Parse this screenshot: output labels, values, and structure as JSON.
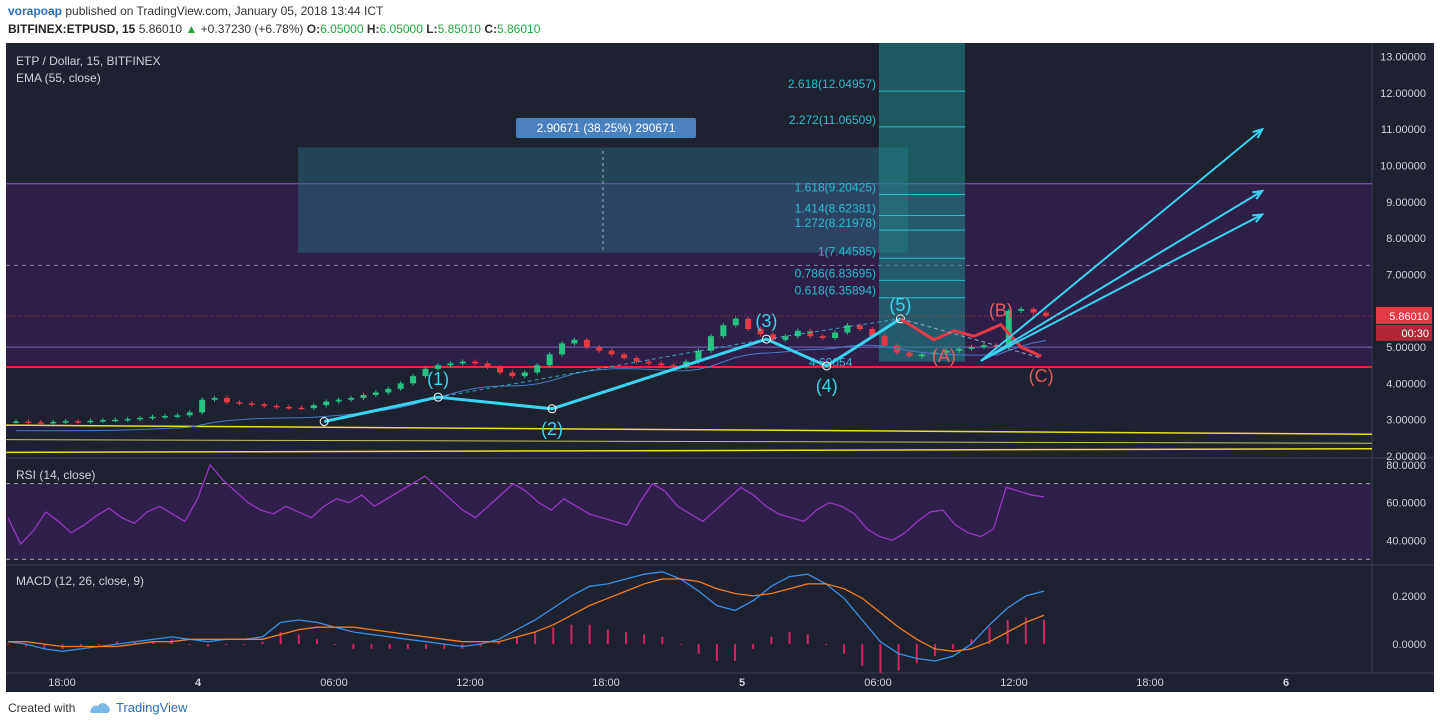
{
  "header": {
    "author": "vorapoap",
    "published": "published on TradingView.com, January 05, 2018 13:44 ICT",
    "symbol": "BITFINEX:ETPUSD, 15",
    "last": "5.86010",
    "change_arrow": "▲",
    "change": "+0.37230 (+6.78%)",
    "o_label": "O:",
    "o": "6.05000",
    "h_label": "H:",
    "h": "6.05000",
    "l_label": "L:",
    "l": "5.85010",
    "c_label": "C:",
    "c": "5.86010"
  },
  "footer": {
    "created_with": "Created with",
    "brand": "TradingView"
  },
  "colors": {
    "bg": "#1d2130",
    "up": "#26c281",
    "down": "#e53945",
    "wave": "#3ad4f0",
    "fib": "#2bbcd0",
    "rsi": "#9b36c9",
    "macd": "#3a8ee8",
    "signal": "#f07f22",
    "hist": "#d4255e",
    "red_line": "#ff2626",
    "yellow": "#e8e020"
  },
  "chart_data": [
    {
      "type": "candlestick",
      "title": "ETP / Dollar, 15, BITFINEX",
      "indicator": "EMA (55, close)",
      "x_tick_labels": [
        "18:00",
        "4",
        "06:00",
        "12:00",
        "18:00",
        "5",
        "06:00",
        "12:00",
        "18:00",
        "6"
      ],
      "y_tick_labels": [
        "2.00000",
        "3.00000",
        "4.00000",
        "5.00000",
        "6.00000",
        "7.00000",
        "8.00000",
        "9.00000",
        "10.00000",
        "11.00000",
        "12.00000",
        "13.00000"
      ],
      "ylim": [
        2.0,
        13.1
      ],
      "last_price": "5.86010",
      "countdown": "00:30",
      "measure_label": "2.90671 (38.25%) 290671",
      "fib_levels": [
        {
          "label": "0.618(6.35894)",
          "value": 6.35894
        },
        {
          "label": "0.786(6.83695)",
          "value": 6.83695
        },
        {
          "label": "1(7.44585)",
          "value": 7.44585
        },
        {
          "label": "1.272(8.21978)",
          "value": 8.21978
        },
        {
          "label": "1.414(8.62381)",
          "value": 8.62381
        },
        {
          "label": "1.618(9.20425)",
          "value": 9.20425
        },
        {
          "label": "2.272(11.06509)",
          "value": 11.06509
        },
        {
          "label": "2.618(12.04957)",
          "value": 12.04957
        }
      ],
      "fib_low_label": "4.60054",
      "wave_labels": [
        "(1)",
        "(2)",
        "(3)",
        "(4)",
        "(5)",
        "(A)",
        "(B)",
        "(C)"
      ],
      "horizontal_levels": [
        4.45,
        9.5,
        7.25
      ],
      "wave_points": [
        {
          "x": 2.3,
          "y": 2.95
        },
        {
          "x": 3.15,
          "y": 3.62
        },
        {
          "x": 4.0,
          "y": 3.3
        },
        {
          "x": 5.6,
          "y": 5.22
        },
        {
          "x": 6.05,
          "y": 4.48
        },
        {
          "x": 6.6,
          "y": 5.78
        }
      ],
      "corrective_points": [
        {
          "x": 6.6,
          "y": 5.78
        },
        {
          "x": 6.85,
          "y": 5.2
        },
        {
          "x": 7.0,
          "y": 5.45
        },
        {
          "x": 7.15,
          "y": 5.3
        },
        {
          "x": 7.35,
          "y": 5.62
        },
        {
          "x": 7.5,
          "y": 5.0
        },
        {
          "x": 7.65,
          "y": 4.75
        }
      ],
      "projections": [
        {
          "x1": 7.2,
          "y1": 4.62,
          "x2": 9.3,
          "y2": 11.0
        },
        {
          "x1": 7.2,
          "y1": 4.62,
          "x2": 9.3,
          "y2": 9.3
        },
        {
          "x1": 7.2,
          "y1": 4.62,
          "x2": 9.3,
          "y2": 8.65
        }
      ],
      "close": [
        2.95,
        2.93,
        2.92,
        2.94,
        2.96,
        2.95,
        2.97,
        2.99,
        3.0,
        3.02,
        3.05,
        3.08,
        3.1,
        3.12,
        3.2,
        3.55,
        3.6,
        3.48,
        3.45,
        3.42,
        3.38,
        3.35,
        3.33,
        3.32,
        3.4,
        3.5,
        3.55,
        3.6,
        3.68,
        3.75,
        3.85,
        4.0,
        4.2,
        4.4,
        4.5,
        4.55,
        4.6,
        4.55,
        4.45,
        4.3,
        4.2,
        4.3,
        4.5,
        4.8,
        5.1,
        5.2,
        5.0,
        4.9,
        4.8,
        4.7,
        4.6,
        4.55,
        4.5,
        4.45,
        4.6,
        4.9,
        5.3,
        5.6,
        5.78,
        5.5,
        5.35,
        5.2,
        5.3,
        5.45,
        5.3,
        5.25,
        5.4,
        5.6,
        5.5,
        5.3,
        5.05,
        4.85,
        4.75,
        4.8,
        4.85,
        4.9,
        4.95,
        5.0,
        5.05,
        5.0,
        6.0,
        6.05,
        5.95,
        5.86
      ]
    },
    {
      "type": "line",
      "title": "RSI (14, close)",
      "y_tick_labels": [
        "40.0000",
        "60.0000",
        "80.0000"
      ],
      "ylim": [
        28,
        82
      ],
      "bands": [
        30,
        70
      ],
      "values": [
        52,
        38,
        45,
        55,
        50,
        44,
        48,
        53,
        57,
        52,
        49,
        55,
        58,
        54,
        50,
        62,
        80,
        72,
        66,
        60,
        56,
        54,
        58,
        55,
        52,
        58,
        62,
        60,
        64,
        58,
        62,
        66,
        70,
        74,
        68,
        62,
        56,
        52,
        58,
        64,
        70,
        66,
        60,
        56,
        62,
        58,
        54,
        52,
        50,
        48,
        60,
        70,
        66,
        58,
        54,
        50,
        56,
        62,
        68,
        64,
        58,
        54,
        52,
        50,
        56,
        60,
        58,
        54,
        46,
        42,
        40,
        44,
        50,
        55,
        56,
        48,
        44,
        42,
        46,
        68,
        66,
        64,
        63
      ]
    },
    {
      "type": "line",
      "title": "MACD (12, 26, close, 9)",
      "y_tick_labels": [
        "0.0000",
        "0.2000"
      ],
      "ylim": [
        -0.12,
        0.32
      ],
      "macd": [
        0.01,
        0.0,
        -0.02,
        -0.03,
        -0.02,
        -0.01,
        0.0,
        0.01,
        0.02,
        0.03,
        0.02,
        0.01,
        0.02,
        0.02,
        0.03,
        0.09,
        0.1,
        0.09,
        0.07,
        0.05,
        0.04,
        0.03,
        0.02,
        0.01,
        0.0,
        -0.01,
        0.0,
        0.02,
        0.06,
        0.1,
        0.15,
        0.2,
        0.24,
        0.25,
        0.27,
        0.29,
        0.3,
        0.27,
        0.22,
        0.16,
        0.14,
        0.18,
        0.24,
        0.28,
        0.29,
        0.25,
        0.19,
        0.1,
        0.01,
        -0.04,
        -0.06,
        -0.07,
        -0.05,
        0.0,
        0.08,
        0.15,
        0.2,
        0.22
      ],
      "signal": [
        0.01,
        0.01,
        0.0,
        -0.01,
        -0.01,
        -0.01,
        -0.01,
        0.0,
        0.01,
        0.01,
        0.02,
        0.02,
        0.02,
        0.02,
        0.02,
        0.04,
        0.06,
        0.07,
        0.07,
        0.07,
        0.06,
        0.05,
        0.04,
        0.03,
        0.02,
        0.01,
        0.01,
        0.01,
        0.03,
        0.05,
        0.08,
        0.12,
        0.16,
        0.19,
        0.22,
        0.25,
        0.27,
        0.27,
        0.26,
        0.23,
        0.21,
        0.2,
        0.21,
        0.23,
        0.25,
        0.25,
        0.23,
        0.19,
        0.13,
        0.07,
        0.02,
        -0.02,
        -0.03,
        -0.02,
        0.01,
        0.05,
        0.09,
        0.12
      ],
      "histogram": [
        0.0,
        -0.01,
        -0.02,
        -0.02,
        -0.01,
        0.0,
        0.01,
        0.01,
        0.01,
        0.02,
        0.0,
        -0.01,
        0.0,
        0.0,
        0.01,
        0.05,
        0.04,
        0.02,
        0.0,
        -0.02,
        -0.02,
        -0.02,
        -0.02,
        -0.02,
        -0.02,
        -0.02,
        -0.01,
        0.01,
        0.03,
        0.05,
        0.07,
        0.08,
        0.08,
        0.06,
        0.05,
        0.04,
        0.03,
        0.0,
        -0.04,
        -0.07,
        -0.07,
        -0.02,
        0.03,
        0.05,
        0.04,
        0.0,
        -0.04,
        -0.09,
        -0.12,
        -0.11,
        -0.08,
        -0.05,
        -0.02,
        0.02,
        0.07,
        0.1,
        0.11,
        0.1
      ]
    }
  ]
}
